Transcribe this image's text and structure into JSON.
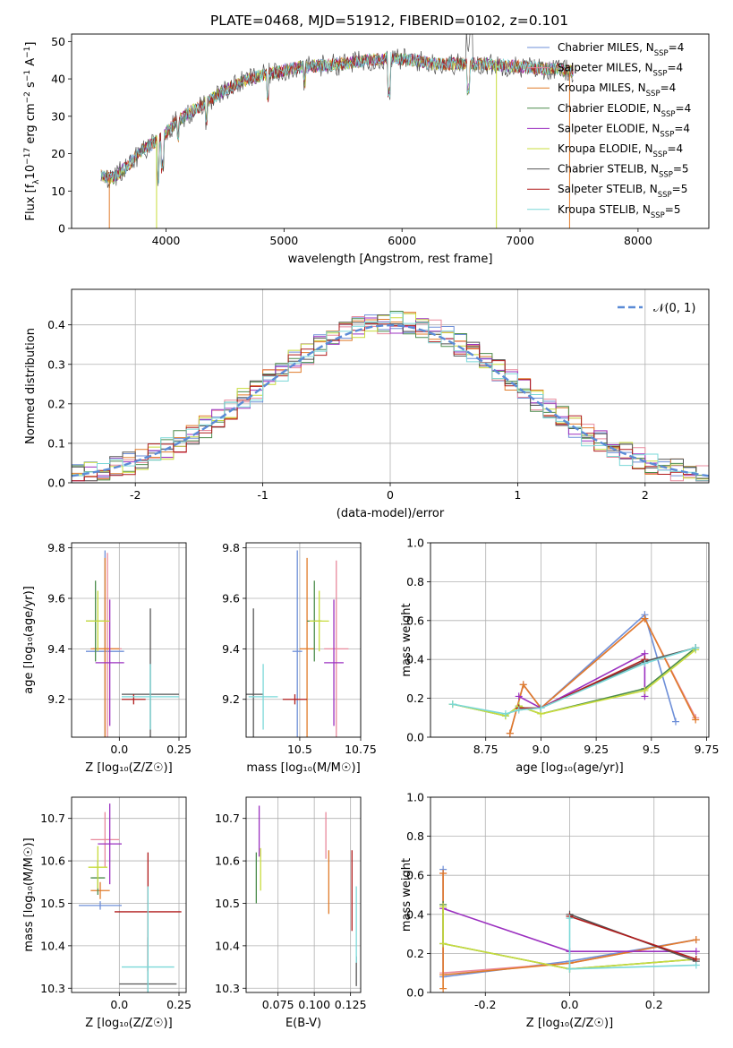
{
  "title": "PLATE=0468, MJD=51912, FIBERID=0102, z=0.101",
  "colors": {
    "chabrier_miles": "#6e8fd8",
    "salpeter_miles": "#e8899c",
    "kroupa_miles": "#e07b2a",
    "chabrier_elodie": "#4c8c4c",
    "salpeter_elodie": "#9b30c0",
    "kroupa_elodie": "#c8dc3c",
    "chabrier_stelib": "#555555",
    "salpeter_stelib": "#b01c1c",
    "kroupa_stelib": "#7ad8d8",
    "normal": "#5b8bd6"
  },
  "chart_data": [
    {
      "type": "line",
      "panel": "spectrum",
      "xlabel": "wavelength [Angstrom, rest frame]",
      "ylabel_parts": [
        "Flux [f",
        "λ",
        "10",
        "−17",
        " erg cm",
        "−2",
        " s",
        "−1",
        " A",
        "−1",
        "]"
      ],
      "xlim": [
        3200,
        8600
      ],
      "ylim": [
        0,
        52
      ],
      "xticks": [
        4000,
        5000,
        6000,
        7000,
        8000
      ],
      "yticks": [
        0,
        10,
        20,
        30,
        40,
        50
      ],
      "grid": false,
      "legend_position": "upper-right",
      "legend": [
        {
          "key": "chabrier_miles",
          "base": "Chabrier MILES, N",
          "sub": "SSP",
          "tail": "=4"
        },
        {
          "key": "salpeter_miles",
          "base": "Salpeter MILES, N",
          "sub": "SSP",
          "tail": "=4"
        },
        {
          "key": "kroupa_miles",
          "base": "Kroupa MILES, N",
          "sub": "SSP",
          "tail": "=4"
        },
        {
          "key": "chabrier_elodie",
          "base": "Chabrier ELODIE, N",
          "sub": "SSP",
          "tail": "=4"
        },
        {
          "key": "salpeter_elodie",
          "base": "Salpeter ELODIE, N",
          "sub": "SSP",
          "tail": "=4"
        },
        {
          "key": "kroupa_elodie",
          "base": "Kroupa ELODIE, N",
          "sub": "SSP",
          "tail": "=4"
        },
        {
          "key": "chabrier_stelib",
          "base": "Chabrier STELIB, N",
          "sub": "SSP",
          "tail": "=5"
        },
        {
          "key": "salpeter_stelib",
          "base": "Salpeter STELIB, N",
          "sub": "SSP",
          "tail": "=5"
        },
        {
          "key": "kroupa_stelib",
          "base": "Kroupa STELIB, N",
          "sub": "SSP",
          "tail": "=5"
        }
      ],
      "continuum": [
        [
          3450,
          14
        ],
        [
          3550,
          13.5
        ],
        [
          3650,
          16
        ],
        [
          3800,
          21
        ],
        [
          3950,
          24
        ],
        [
          4100,
          29
        ],
        [
          4300,
          33
        ],
        [
          4500,
          37
        ],
        [
          4700,
          40
        ],
        [
          4900,
          41.5
        ],
        [
          5100,
          43
        ],
        [
          5300,
          43.5
        ],
        [
          5500,
          44
        ],
        [
          5700,
          45
        ],
        [
          5900,
          45.5
        ],
        [
          6100,
          45
        ],
        [
          6300,
          44
        ],
        [
          6500,
          44
        ],
        [
          6700,
          44
        ],
        [
          6900,
          43.5
        ],
        [
          7100,
          43
        ],
        [
          7300,
          42.5
        ],
        [
          7450,
          42
        ]
      ],
      "dropouts": [
        {
          "key": "kroupa_miles",
          "x": 3520,
          "to": 0
        },
        {
          "key": "kroupa_elodie",
          "x": 3920,
          "to": 0
        },
        {
          "key": "kroupa_elodie",
          "x": 6800,
          "to": 0
        },
        {
          "key": "kroupa_miles",
          "x": 7420,
          "to": 0
        }
      ]
    },
    {
      "type": "line",
      "panel": "residuals",
      "xlabel": "(data-model)/error",
      "ylabel": "Normed distribution",
      "xlim": [
        -2.5,
        2.5
      ],
      "ylim": [
        0,
        0.49
      ],
      "xticks": [
        -2,
        -1,
        0,
        1,
        2
      ],
      "yticks": [
        0.0,
        0.1,
        0.2,
        0.3,
        0.4
      ],
      "grid": true,
      "legend_position": "upper-right",
      "legend_label": "𝒩(0, 1)",
      "bin_width": 0.1
    },
    {
      "type": "scatter",
      "panel": "age_vs_Z",
      "xlabel": "Z [log₁₀(Z/Z☉)]",
      "ylabel": "age  [log₁₀(age/yr)]",
      "xlim": [
        -0.2,
        0.28
      ],
      "ylim": [
        9.05,
        9.82
      ],
      "xticks": [
        0.0,
        0.25
      ],
      "yticks": [
        9.2,
        9.4,
        9.6,
        9.8
      ],
      "grid": true,
      "points": [
        {
          "key": "chabrier_miles",
          "x": -0.06,
          "y": 9.39,
          "xe": 0.08,
          "ye": 0.4
        },
        {
          "key": "salpeter_miles",
          "x": -0.05,
          "y": 9.4,
          "xe": 0.06,
          "ye": 0.38
        },
        {
          "key": "kroupa_miles",
          "x": -0.06,
          "y": 9.4,
          "xe": 0.06,
          "ye": 0.36
        },
        {
          "key": "chabrier_elodie",
          "x": -0.1,
          "y": 9.51,
          "xe": 0.04,
          "ye": 0.16
        },
        {
          "key": "salpeter_elodie",
          "x": -0.04,
          "y": 9.345,
          "xe": 0.06,
          "ye": 0.25
        },
        {
          "key": "kroupa_elodie",
          "x": -0.09,
          "y": 9.51,
          "xe": 0.05,
          "ye": 0.12
        },
        {
          "key": "chabrier_stelib",
          "x": 0.13,
          "y": 9.22,
          "xe": 0.12,
          "ye": 0.34
        },
        {
          "key": "salpeter_stelib",
          "x": 0.06,
          "y": 9.2,
          "xe": 0.05,
          "ye": 0.02
        },
        {
          "key": "kroupa_stelib",
          "x": 0.13,
          "y": 9.21,
          "xe": 0.12,
          "ye": 0.13
        }
      ]
    },
    {
      "type": "scatter",
      "panel": "age_vs_mass",
      "xlabel": "mass [log₁₀(M/M☉)]",
      "ylabel": "",
      "xlim": [
        10.28,
        10.75
      ],
      "ylim": [
        9.05,
        9.82
      ],
      "xticks": [
        10.5,
        10.75
      ],
      "yticks": [
        9.2,
        9.4,
        9.6,
        9.8
      ],
      "grid": true,
      "points": [
        {
          "key": "chabrier_miles",
          "x": 10.49,
          "y": 9.39,
          "xe": 0.02,
          "ye": 0.4
        },
        {
          "key": "salpeter_miles",
          "x": 10.65,
          "y": 9.4,
          "xe": 0.05,
          "ye": 0.35
        },
        {
          "key": "kroupa_miles",
          "x": 10.53,
          "y": 9.4,
          "xe": 0.03,
          "ye": 0.36
        },
        {
          "key": "chabrier_elodie",
          "x": 10.56,
          "y": 9.51,
          "xe": 0.03,
          "ye": 0.16
        },
        {
          "key": "salpeter_elodie",
          "x": 10.64,
          "y": 9.345,
          "xe": 0.04,
          "ye": 0.25
        },
        {
          "key": "kroupa_elodie",
          "x": 10.58,
          "y": 9.51,
          "xe": 0.04,
          "ye": 0.12
        },
        {
          "key": "chabrier_stelib",
          "x": 10.31,
          "y": 9.22,
          "xe": 0.04,
          "ye": 0.34
        },
        {
          "key": "salpeter_stelib",
          "x": 10.48,
          "y": 9.2,
          "xe": 0.05,
          "ye": 0.02
        },
        {
          "key": "kroupa_stelib",
          "x": 10.35,
          "y": 9.21,
          "xe": 0.06,
          "ye": 0.13
        }
      ]
    },
    {
      "type": "line",
      "panel": "weight_vs_age",
      "xlabel": "age  [log₁₀(age/yr)]",
      "ylabel": "mass weight",
      "xlim": [
        8.5,
        9.76
      ],
      "ylim": [
        0,
        1.0
      ],
      "xticks": [
        8.75,
        9.0,
        9.25,
        9.5,
        9.75
      ],
      "yticks": [
        0.0,
        0.2,
        0.4,
        0.6,
        0.8,
        1.0
      ],
      "grid": true,
      "series": [
        {
          "key": "chabrier_miles",
          "x": [
            8.86,
            8.92,
            9.0,
            9.47,
            9.61
          ],
          "y": [
            0.02,
            0.27,
            0.15,
            0.63,
            0.08
          ]
        },
        {
          "key": "salpeter_miles",
          "x": [
            8.86,
            8.92,
            9.0,
            9.47,
            9.7
          ],
          "y": [
            0.02,
            0.27,
            0.15,
            0.61,
            0.1
          ]
        },
        {
          "key": "kroupa_miles",
          "x": [
            8.86,
            8.92,
            9.0,
            9.47,
            9.7
          ],
          "y": [
            0.02,
            0.27,
            0.15,
            0.61,
            0.09
          ]
        },
        {
          "key": "chabrier_elodie",
          "x": [
            8.6,
            8.84,
            8.9,
            9.0,
            9.47,
            9.7
          ],
          "y": [
            0.17,
            0.11,
            0.16,
            0.12,
            0.25,
            0.46
          ]
        },
        {
          "key": "salpeter_elodie",
          "x": [
            8.9,
            9.0,
            9.47,
            9.47
          ],
          "y": [
            0.21,
            0.15,
            0.43,
            0.21
          ]
        },
        {
          "key": "kroupa_elodie",
          "x": [
            8.6,
            8.84,
            8.9,
            9.0,
            9.47,
            9.7
          ],
          "y": [
            0.17,
            0.11,
            0.16,
            0.12,
            0.24,
            0.45
          ]
        },
        {
          "key": "chabrier_stelib",
          "x": [
            8.9,
            9.0,
            9.47,
            9.7
          ],
          "y": [
            0.15,
            0.15,
            0.39,
            0.46
          ]
        },
        {
          "key": "salpeter_stelib",
          "x": [
            8.9,
            9.0,
            9.47
          ],
          "y": [
            0.15,
            0.15,
            0.4
          ]
        },
        {
          "key": "kroupa_stelib",
          "x": [
            8.6,
            8.84,
            8.9,
            9.0,
            9.47,
            9.7
          ],
          "y": [
            0.17,
            0.12,
            0.14,
            0.15,
            0.38,
            0.46
          ]
        }
      ]
    },
    {
      "type": "scatter",
      "panel": "mass_vs_Z",
      "xlabel": "Z [log₁₀(Z/Z☉)]",
      "ylabel": "mass [log₁₀(M/M☉)]",
      "xlim": [
        -0.2,
        0.28
      ],
      "ylim": [
        10.29,
        10.75
      ],
      "xticks": [
        0.0,
        0.25
      ],
      "yticks": [
        10.3,
        10.4,
        10.5,
        10.6,
        10.7
      ],
      "grid": true,
      "points": [
        {
          "key": "chabrier_miles",
          "x": -0.08,
          "y": 10.495,
          "xe": 0.09,
          "ye": 0.01
        },
        {
          "key": "salpeter_miles",
          "x": -0.06,
          "y": 10.65,
          "xe": 0.06,
          "ye": 0.065
        },
        {
          "key": "kroupa_miles",
          "x": -0.08,
          "y": 10.53,
          "xe": 0.04,
          "ye": 0.02
        },
        {
          "key": "chabrier_elodie",
          "x": -0.09,
          "y": 10.56,
          "xe": 0.03,
          "ye": 0.04
        },
        {
          "key": "salpeter_elodie",
          "x": -0.04,
          "y": 10.64,
          "xe": 0.05,
          "ye": 0.095
        },
        {
          "key": "kroupa_elodie",
          "x": -0.09,
          "y": 10.585,
          "xe": 0.04,
          "ye": 0.05
        },
        {
          "key": "chabrier_stelib",
          "x": 0.12,
          "y": 10.31,
          "xe": 0.12,
          "ye": 0.11
        },
        {
          "key": "salpeter_stelib",
          "x": 0.12,
          "y": 10.48,
          "xe": 0.14,
          "ye": 0.14
        },
        {
          "key": "kroupa_stelib",
          "x": 0.12,
          "y": 10.35,
          "xe": 0.11,
          "ye": 0.19
        }
      ]
    },
    {
      "type": "scatter",
      "panel": "mass_vs_ebv",
      "xlabel": "E(B-V)",
      "ylabel": "",
      "xlim": [
        0.053,
        0.132
      ],
      "ylim": [
        10.29,
        10.75
      ],
      "xticks": [
        0.075,
        0.1,
        0.125
      ],
      "xtick_labels": [
        "0.075",
        "0.100",
        "0.125"
      ],
      "yticks": [
        10.3,
        10.4,
        10.5,
        10.6,
        10.7
      ],
      "grid": true,
      "points": [
        {
          "key": "salpeter_miles",
          "x": 0.108,
          "y": 10.66,
          "xe": 0,
          "ye": 0.055
        },
        {
          "key": "salpeter_elodie",
          "x": 0.062,
          "y": 10.67,
          "xe": 0,
          "ye": 0.06
        },
        {
          "key": "kroupa_elodie",
          "x": 0.063,
          "y": 10.58,
          "xe": 0,
          "ye": 0.05
        },
        {
          "key": "chabrier_elodie",
          "x": 0.06,
          "y": 10.56,
          "xe": 0,
          "ye": 0.06
        },
        {
          "key": "kroupa_miles",
          "x": 0.11,
          "y": 10.55,
          "xe": 0,
          "ye": 0.075
        },
        {
          "key": "salpeter_stelib",
          "x": 0.126,
          "y": 10.53,
          "xe": 0,
          "ye": 0.095
        },
        {
          "key": "chabrier_stelib",
          "x": 0.129,
          "y": 10.34,
          "xe": 0,
          "ye": 0.035
        },
        {
          "key": "kroupa_stelib",
          "x": 0.129,
          "y": 10.45,
          "xe": 0,
          "ye": 0.09
        }
      ]
    },
    {
      "type": "line",
      "panel": "weight_vs_Z",
      "xlabel": "Z [log₁₀(Z/Z☉)]",
      "ylabel": "mass weight",
      "xlim": [
        -0.33,
        0.33
      ],
      "ylim": [
        0,
        1.0
      ],
      "xticks": [
        -0.2,
        0.0,
        0.2
      ],
      "yticks": [
        0.0,
        0.2,
        0.4,
        0.6,
        0.8,
        1.0
      ],
      "grid": true,
      "series": [
        {
          "key": "chabrier_miles",
          "x": [
            -0.3,
            -0.3,
            0.0,
            0.3
          ],
          "y": [
            0.63,
            0.08,
            0.16,
            0.27
          ]
        },
        {
          "key": "salpeter_miles",
          "x": [
            -0.3,
            -0.3,
            0.0,
            0.3
          ],
          "y": [
            0.61,
            0.1,
            0.15,
            0.27
          ]
        },
        {
          "key": "kroupa_miles",
          "x": [
            -0.3,
            -0.3,
            -0.3,
            0.0,
            0.3
          ],
          "y": [
            0.02,
            0.61,
            0.09,
            0.15,
            0.27
          ]
        },
        {
          "key": "chabrier_elodie",
          "x": [
            -0.3,
            -0.3,
            0.0,
            0.3
          ],
          "y": [
            0.45,
            0.25,
            0.12,
            0.17
          ]
        },
        {
          "key": "salpeter_elodie",
          "x": [
            -0.3,
            0.0,
            0.0,
            0.3
          ],
          "y": [
            0.43,
            0.21,
            0.21,
            0.21
          ]
        },
        {
          "key": "kroupa_elodie",
          "x": [
            -0.3,
            -0.3,
            0.0,
            0.3
          ],
          "y": [
            0.44,
            0.25,
            0.12,
            0.17
          ]
        },
        {
          "key": "chabrier_stelib",
          "x": [
            0.0,
            0.3
          ],
          "y": [
            0.4,
            0.16
          ]
        },
        {
          "key": "salpeter_stelib",
          "x": [
            0.0,
            0.3
          ],
          "y": [
            0.39,
            0.17
          ]
        },
        {
          "key": "kroupa_stelib",
          "x": [
            0.0,
            0.0,
            0.3
          ],
          "y": [
            0.38,
            0.12,
            0.14
          ]
        }
      ]
    }
  ]
}
